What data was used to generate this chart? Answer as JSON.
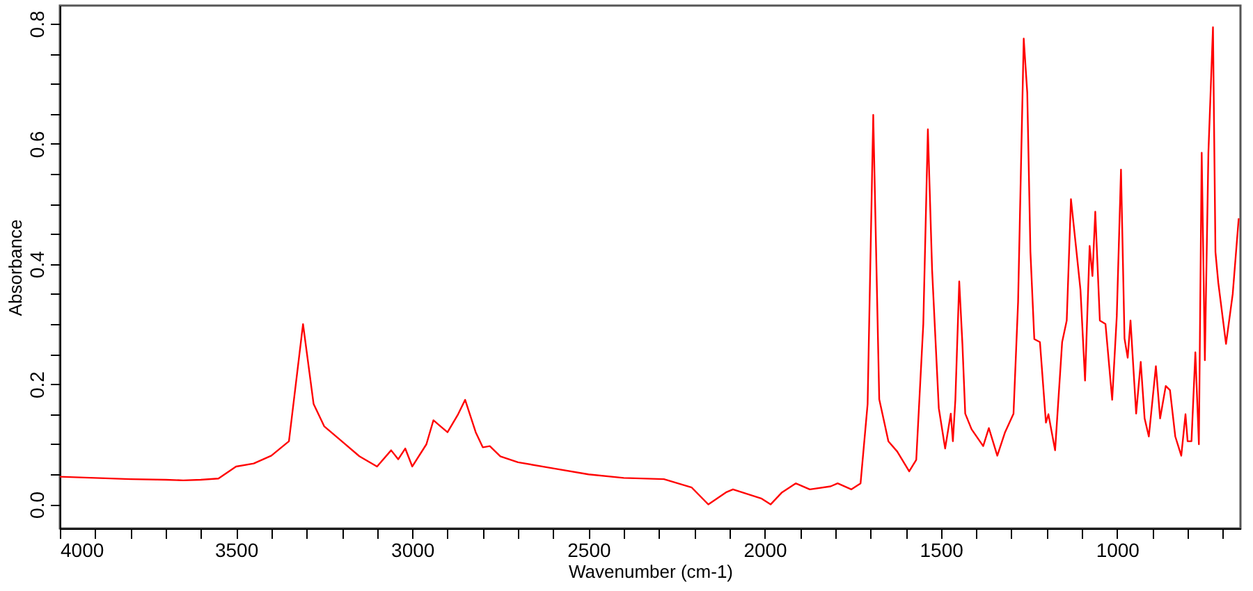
{
  "chart_data": {
    "type": "line",
    "xlabel": "Wavenumber (cm-1)",
    "ylabel": "Absorbance",
    "x": [
      4000,
      3900,
      3800,
      3700,
      3650,
      3600,
      3550,
      3500,
      3450,
      3400,
      3350,
      3310,
      3280,
      3250,
      3200,
      3150,
      3100,
      3060,
      3040,
      3020,
      3000,
      2960,
      2940,
      2920,
      2900,
      2870,
      2850,
      2820,
      2800,
      2780,
      2750,
      2700,
      2600,
      2500,
      2400,
      2286,
      2207,
      2160,
      2110,
      2090,
      2010,
      1983,
      1951,
      1912,
      1872,
      1813,
      1793,
      1754,
      1728,
      1708,
      1692,
      1675,
      1649,
      1624,
      1590,
      1570,
      1550,
      1537,
      1525,
      1506,
      1488,
      1472,
      1466,
      1459,
      1448,
      1439,
      1431,
      1413,
      1380,
      1364,
      1340,
      1318,
      1294,
      1281,
      1265,
      1255,
      1246,
      1235,
      1219,
      1202,
      1195,
      1176,
      1156,
      1143,
      1131,
      1117,
      1104,
      1091,
      1078,
      1070,
      1062,
      1049,
      1033,
      1014,
      1001,
      989,
      979,
      970,
      962,
      946,
      933,
      922,
      910,
      890,
      878,
      862,
      850,
      835,
      818,
      806,
      800,
      789,
      778,
      768,
      760,
      751,
      741,
      728,
      721,
      713,
      691,
      672,
      655
    ],
    "series": [
      {
        "color": "#ff0000",
        "values": [
          0.046,
          0.044,
          0.042,
          0.041,
          0.04,
          0.041,
          0.043,
          0.063,
          0.068,
          0.081,
          0.105,
          0.3,
          0.167,
          0.13,
          0.105,
          0.08,
          0.063,
          0.09,
          0.075,
          0.093,
          0.063,
          0.1,
          0.14,
          0.13,
          0.12,
          0.15,
          0.174,
          0.12,
          0.095,
          0.097,
          0.08,
          0.07,
          0.06,
          0.05,
          0.044,
          0.042,
          0.028,
          0.0,
          0.02,
          0.025,
          0.01,
          0.0,
          0.02,
          0.035,
          0.025,
          0.03,
          0.035,
          0.025,
          0.035,
          0.167,
          0.648,
          0.175,
          0.105,
          0.088,
          0.055,
          0.074,
          0.3,
          0.624,
          0.39,
          0.16,
          0.093,
          0.151,
          0.105,
          0.174,
          0.371,
          0.267,
          0.151,
          0.125,
          0.097,
          0.127,
          0.081,
          0.12,
          0.151,
          0.337,
          0.775,
          0.685,
          0.42,
          0.275,
          0.27,
          0.136,
          0.15,
          0.09,
          0.27,
          0.306,
          0.508,
          0.43,
          0.357,
          0.206,
          0.43,
          0.38,
          0.487,
          0.306,
          0.3,
          0.174,
          0.313,
          0.557,
          0.276,
          0.244,
          0.306,
          0.151,
          0.237,
          0.143,
          0.113,
          0.23,
          0.143,
          0.197,
          0.19,
          0.113,
          0.081,
          0.15,
          0.105,
          0.105,
          0.253,
          0.1,
          0.585,
          0.24,
          0.585,
          0.794,
          0.42,
          0.369,
          0.267,
          0.35,
          0.476
        ]
      }
    ],
    "xlim": [
      4000,
      650
    ],
    "ylim": [
      -0.04,
      0.83
    ],
    "xticks": [
      4000,
      {
        "value": 3900,
        "label": null
      },
      {
        "value": 3800,
        "label": null
      },
      {
        "value": 3700,
        "label": null
      },
      {
        "value": 3600,
        "label": null
      },
      3500,
      {
        "value": 3400,
        "label": null
      },
      {
        "value": 3300,
        "label": null
      },
      {
        "value": 3200,
        "label": null
      },
      {
        "value": 3100,
        "label": null
      },
      3000,
      {
        "value": 2900,
        "label": null
      },
      {
        "value": 2800,
        "label": null
      },
      {
        "value": 2700,
        "label": null
      },
      {
        "value": 2600,
        "label": null
      },
      2500,
      {
        "value": 2400,
        "label": null
      },
      {
        "value": 2300,
        "label": null
      },
      {
        "value": 2200,
        "label": null
      },
      {
        "value": 2100,
        "label": null
      },
      2000,
      {
        "value": 1900,
        "label": null
      },
      {
        "value": 1800,
        "label": null
      },
      {
        "value": 1700,
        "label": null
      },
      {
        "value": 1600,
        "label": null
      },
      1500,
      {
        "value": 1400,
        "label": null
      },
      {
        "value": 1300,
        "label": null
      },
      {
        "value": 1200,
        "label": null
      },
      {
        "value": 1100,
        "label": null
      },
      1000,
      {
        "value": 900,
        "label": null
      },
      {
        "value": 800,
        "label": null
      },
      {
        "value": 700,
        "label": null
      }
    ],
    "yticks": [
      {
        "value": 0,
        "label": "0.0"
      },
      {
        "value": 0.05,
        "label": null
      },
      {
        "value": 0.1,
        "label": null
      },
      {
        "value": 0.15,
        "label": null
      },
      {
        "value": 0.2,
        "label": "0.2"
      },
      {
        "value": 0.25,
        "label": null
      },
      {
        "value": 0.3,
        "label": null
      },
      {
        "value": 0.35,
        "label": null
      },
      {
        "value": 0.4,
        "label": "0.4"
      },
      {
        "value": 0.45,
        "label": null
      },
      {
        "value": 0.5,
        "label": null
      },
      {
        "value": 0.55,
        "label": null
      },
      {
        "value": 0.6,
        "label": "0.6"
      },
      {
        "value": 0.65,
        "label": null
      },
      {
        "value": 0.7,
        "label": null
      },
      {
        "value": 0.75,
        "label": null
      },
      {
        "value": 0.8,
        "label": "0.8"
      }
    ],
    "grid": false,
    "marker": "none",
    "line_style": "solid"
  }
}
